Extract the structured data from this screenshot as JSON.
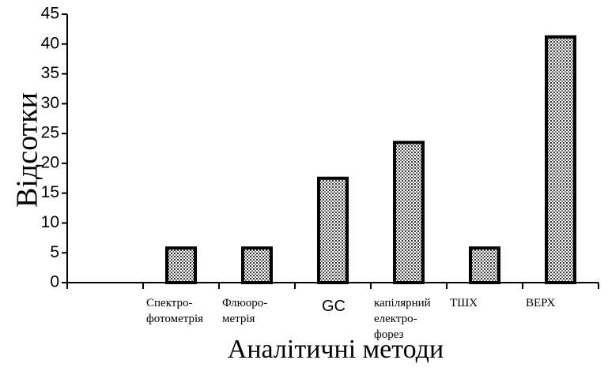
{
  "chart_data": {
    "type": "bar",
    "y_label": "Відсотки",
    "x_label": "Аналітичні методи",
    "categories": [
      null,
      "Спектро-\nфотометрія",
      "Флюоро-\nметрія",
      "GC",
      "капілярний\nелектро-\nфорез",
      "ТШХ",
      "ВЕРХ"
    ],
    "values": [
      null,
      5.8,
      5.8,
      17.5,
      23.5,
      5.8,
      41.2
    ],
    "color": "#000000",
    "ylim": [
      0,
      45
    ],
    "yticks": [
      0,
      5,
      10,
      15,
      20,
      25,
      30,
      35,
      40,
      45
    ]
  }
}
